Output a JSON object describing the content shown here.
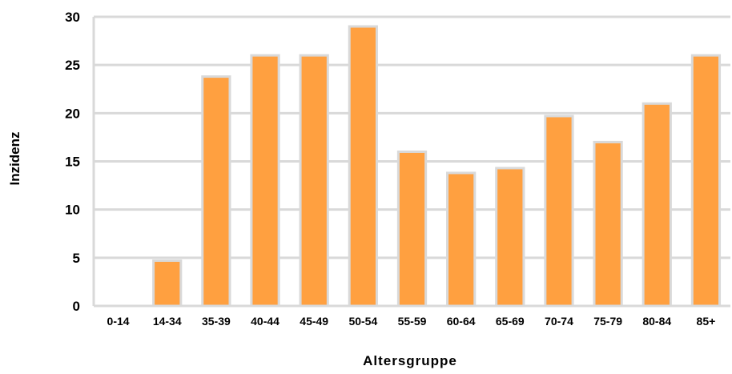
{
  "chart_data": {
    "type": "bar",
    "categories": [
      "0-14",
      "14-34",
      "35-39",
      "40-44",
      "45-49",
      "50-54",
      "55-59",
      "60-64",
      "65-69",
      "70-74",
      "75-79",
      "80-84",
      "85+"
    ],
    "values": [
      0,
      4.7,
      23.8,
      26.0,
      26.0,
      29.0,
      16.0,
      13.8,
      14.3,
      19.7,
      17.0,
      21.0,
      26.0
    ],
    "xlabel": "Altersgruppe",
    "ylabel": "Inzidenz",
    "ylim": [
      0,
      30
    ],
    "yticks": [
      0,
      5,
      10,
      15,
      20,
      25,
      30
    ],
    "grid": true,
    "legend": "none",
    "colors": {
      "bar_fill": "#ffa040",
      "bar_stroke": "#d9d9d9",
      "grid": "#d9d9d9"
    }
  }
}
